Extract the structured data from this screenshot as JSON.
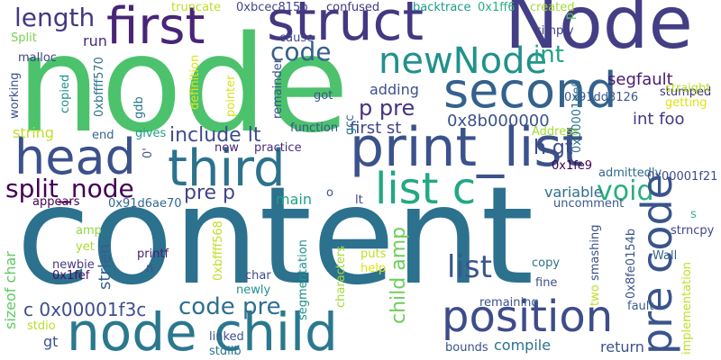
{
  "words": [
    {
      "text": "content",
      "color": "#2c718e"
    },
    {
      "text": "node",
      "color": "#4cc26c"
    },
    {
      "text": "Node",
      "color": "#433e85"
    },
    {
      "text": "struct",
      "color": "#453781"
    },
    {
      "text": "first",
      "color": "#482576"
    },
    {
      "text": "second",
      "color": "#33628d"
    },
    {
      "text": "print_list",
      "color": "#3b528b"
    },
    {
      "text": "node child",
      "color": "#2a788e"
    },
    {
      "text": "position",
      "color": "#3e4c8a"
    },
    {
      "text": "third",
      "color": "#2c728e"
    },
    {
      "text": "head",
      "color": "#3b518b"
    },
    {
      "text": "list c",
      "color": "#23a883"
    },
    {
      "text": "newNode",
      "color": "#21918c"
    },
    {
      "text": "code",
      "color": "#355f8d"
    },
    {
      "text": "length",
      "color": "#453882"
    },
    {
      "text": "split_node",
      "color": "#440154"
    },
    {
      "text": "list",
      "color": "#39558c"
    },
    {
      "text": "pre code",
      "color": "#3a548c"
    },
    {
      "text": "code pre",
      "color": "#2d708e"
    },
    {
      "text": "c 0x00001f3c",
      "color": "#3d4e8a"
    },
    {
      "text": "include lt",
      "color": "#3e4c8a"
    },
    {
      "text": "p pre",
      "color": "#46327e"
    },
    {
      "text": "int",
      "color": "#20a386"
    },
    {
      "text": "void",
      "color": "#29af7f"
    },
    {
      "text": "child amp",
      "color": "#6ece58"
    },
    {
      "text": "strlen",
      "color": "#355f8d"
    },
    {
      "text": "pre p",
      "color": "#404588"
    },
    {
      "text": "h gt",
      "color": "#3e4989"
    },
    {
      "text": "first st",
      "color": "#3f4889"
    },
    {
      "text": "0x8b000000",
      "color": "#3b528b"
    },
    {
      "text": "adding",
      "color": "#3c508b"
    },
    {
      "text": "int foo",
      "color": "#453882"
    },
    {
      "text": "segfault",
      "color": "#481c6e"
    },
    {
      "text": "variable",
      "color": "#2e6e8e"
    },
    {
      "text": "string",
      "color": "#bddf26"
    },
    {
      "text": "main",
      "color": "#1fa088"
    },
    {
      "text": "return",
      "color": "#3b528b"
    },
    {
      "text": "compile",
      "color": "#2d708e"
    },
    {
      "text": "gt",
      "color": "#3b528b"
    },
    {
      "text": "run",
      "color": "#482979"
    },
    {
      "text": "0x91dd3126",
      "color": "#38588c"
    },
    {
      "text": "stumped",
      "color": "#46327e"
    },
    {
      "text": "straight",
      "color": "#b5de2b"
    },
    {
      "text": "getting",
      "color": "#dde318"
    },
    {
      "text": "0x1ff6",
      "color": "#2ab07f"
    },
    {
      "text": "created",
      "color": "#a2da37"
    },
    {
      "text": "backtrace",
      "color": "#1f9a8a"
    },
    {
      "text": "confused",
      "color": "#453882"
    },
    {
      "text": "0xbcec815b",
      "color": "#404588"
    },
    {
      "text": "truncate",
      "color": "#bade28"
    },
    {
      "text": "simply",
      "color": "#433e85"
    },
    {
      "text": "cause",
      "color": "#3e4c8a"
    },
    {
      "text": "malloc",
      "color": "#414487"
    },
    {
      "text": "Split",
      "color": "#7ad151"
    },
    {
      "text": "gdb",
      "color": "#2a788e"
    },
    {
      "text": "got",
      "color": "#39568c"
    },
    {
      "text": "gcc",
      "color": "#2c728e"
    },
    {
      "text": "function",
      "color": "#3a548c"
    },
    {
      "text": "practice",
      "color": "#472d7b"
    },
    {
      "text": "new",
      "color": "#482576"
    },
    {
      "text": "gives",
      "color": "#1f9e89"
    },
    {
      "text": "end",
      "color": "#31678e"
    },
    {
      "text": "Address",
      "color": "#a5db36"
    },
    {
      "text": "0x1fe9",
      "color": "#440154"
    },
    {
      "text": "admittedly",
      "color": "#31688e"
    },
    {
      "text": "0x00001f21",
      "color": "#3e4c8a"
    },
    {
      "text": "uncomment",
      "color": "#38588c"
    },
    {
      "text": "appears",
      "color": "#440154"
    },
    {
      "text": "0x91d6ae70",
      "color": "#31688e"
    },
    {
      "text": "o",
      "color": "#3b528b"
    },
    {
      "text": "lt",
      "color": "#404588"
    },
    {
      "text": "s",
      "color": "#31b57b"
    },
    {
      "text": "strncpy",
      "color": "#404588"
    },
    {
      "text": "Wall",
      "color": "#355f8d"
    },
    {
      "text": "amp",
      "color": "#8fd744"
    },
    {
      "text": "yet",
      "color": "#a8db34"
    },
    {
      "text": "newbie",
      "color": "#453882"
    },
    {
      "text": "0x1fef",
      "color": "#471164"
    },
    {
      "text": "printf",
      "color": "#482173"
    },
    {
      "text": "n",
      "color": "#3b528b"
    },
    {
      "text": "char",
      "color": "#3f4889"
    },
    {
      "text": "newly",
      "color": "#21918c"
    },
    {
      "text": "puts",
      "color": "#bddf26"
    },
    {
      "text": "help",
      "color": "#dde318"
    },
    {
      "text": "copy",
      "color": "#2c728e"
    },
    {
      "text": "fine",
      "color": "#3b528b"
    },
    {
      "text": "remaining",
      "color": "#3b528b"
    },
    {
      "text": "fault",
      "color": "#365d8d"
    },
    {
      "text": "linked",
      "color": "#3b528b"
    },
    {
      "text": "stdlib",
      "color": "#2c728e"
    },
    {
      "text": "bounds",
      "color": "#3b528b"
    },
    {
      "text": "stdio",
      "color": "#b8de29"
    },
    {
      "text": "p",
      "color": "#5ec962"
    },
    {
      "text": "working",
      "color": "#3b528b"
    },
    {
      "text": "0xbffff570",
      "color": "#2c728e"
    },
    {
      "text": "copied",
      "color": "#21918c"
    },
    {
      "text": "definition",
      "color": "#dde318"
    },
    {
      "text": "pointer",
      "color": "#d8e219"
    },
    {
      "text": "remainder",
      "color": "#3b528b"
    },
    {
      "text": "0x00001ee0",
      "color": "#2c728e"
    },
    {
      "text": "0'",
      "color": "#3b528b"
    },
    {
      "text": "0xbffff568",
      "color": "#bddf26"
    },
    {
      "text": "characters",
      "color": "#a2da37"
    },
    {
      "text": "segmentation",
      "color": "#21918c"
    },
    {
      "text": "sizeof char",
      "color": "#5ec962"
    },
    {
      "text": "two",
      "color": "#bddf26"
    },
    {
      "text": "smashing",
      "color": "#3b528b"
    },
    {
      "text": "0x8fe0154b",
      "color": "#3b528b"
    },
    {
      "text": "implementation",
      "color": "#bddf26"
    }
  ]
}
